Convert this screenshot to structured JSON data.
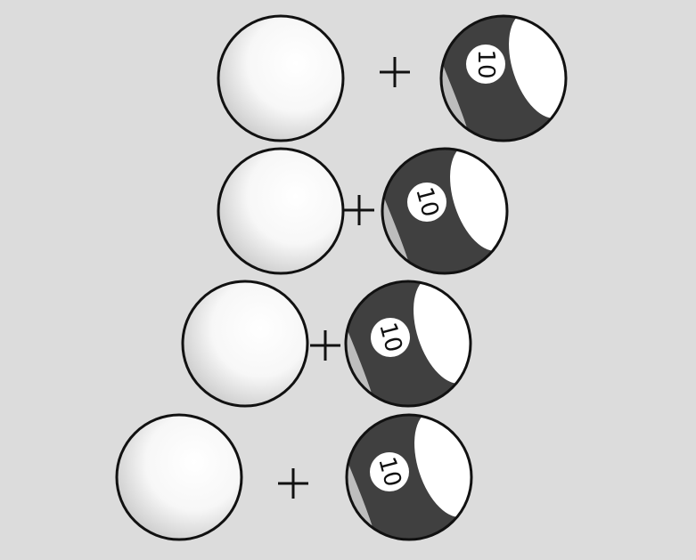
{
  "colors": {
    "background": "#dcdcdc",
    "cue_ball_light": "#ffffff",
    "cue_ball_shadow": "#c8c8c8",
    "stripe": "#404040",
    "outline": "#111111"
  },
  "rows": [
    {
      "cue_ball": "white-cue-ball",
      "operator": "+",
      "striped_ball": {
        "number": "10"
      }
    },
    {
      "cue_ball": "white-cue-ball",
      "operator": "+",
      "striped_ball": {
        "number": "10"
      }
    },
    {
      "cue_ball": "white-cue-ball",
      "operator": "+",
      "striped_ball": {
        "number": "10"
      }
    },
    {
      "cue_ball": "white-cue-ball",
      "operator": "+",
      "striped_ball": {
        "number": "10"
      }
    }
  ]
}
